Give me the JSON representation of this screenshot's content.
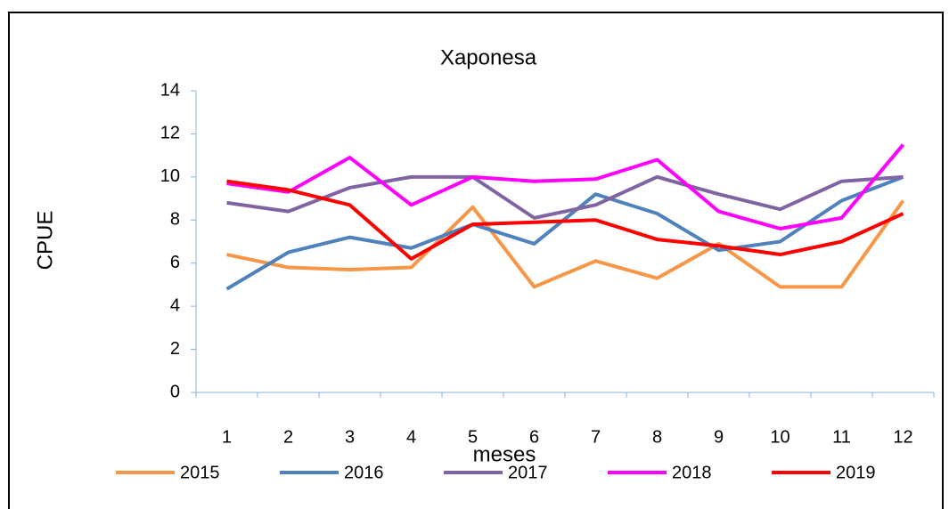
{
  "chart_data": {
    "type": "line",
    "title": "Xaponesa",
    "x_label": "meses",
    "y_label": "CPUE",
    "categories": [
      "1",
      "2",
      "3",
      "4",
      "5",
      "6",
      "7",
      "8",
      "9",
      "10",
      "11",
      "12"
    ],
    "ylim": [
      0,
      14
    ],
    "yticks": [
      0,
      2,
      4,
      6,
      8,
      10,
      12,
      14
    ],
    "grid": false,
    "legend": "bottom",
    "series": [
      {
        "name": "2015",
        "color": "#f79646",
        "values": [
          6.4,
          5.8,
          5.7,
          5.8,
          8.6,
          4.9,
          6.1,
          5.3,
          6.9,
          4.9,
          4.9,
          8.9
        ]
      },
      {
        "name": "2016",
        "color": "#4f81bd",
        "values": [
          4.8,
          6.5,
          7.2,
          6.7,
          7.8,
          6.9,
          9.2,
          8.3,
          6.6,
          7.0,
          8.9,
          10.0
        ]
      },
      {
        "name": "2017",
        "color": "#8064a2",
        "values": [
          8.8,
          8.4,
          9.5,
          10.0,
          10.0,
          8.1,
          8.7,
          10.0,
          9.2,
          8.5,
          9.8,
          10.0
        ]
      },
      {
        "name": "2018",
        "color": "#ff00ff",
        "values": [
          9.7,
          9.3,
          10.9,
          8.7,
          10.0,
          9.8,
          9.9,
          10.8,
          8.4,
          7.6,
          8.1,
          11.5
        ]
      },
      {
        "name": "2019",
        "color": "#ff0000",
        "values": [
          9.8,
          9.4,
          8.7,
          6.2,
          7.8,
          7.9,
          8.0,
          7.1,
          6.8,
          6.4,
          7.0,
          8.3
        ]
      }
    ]
  }
}
